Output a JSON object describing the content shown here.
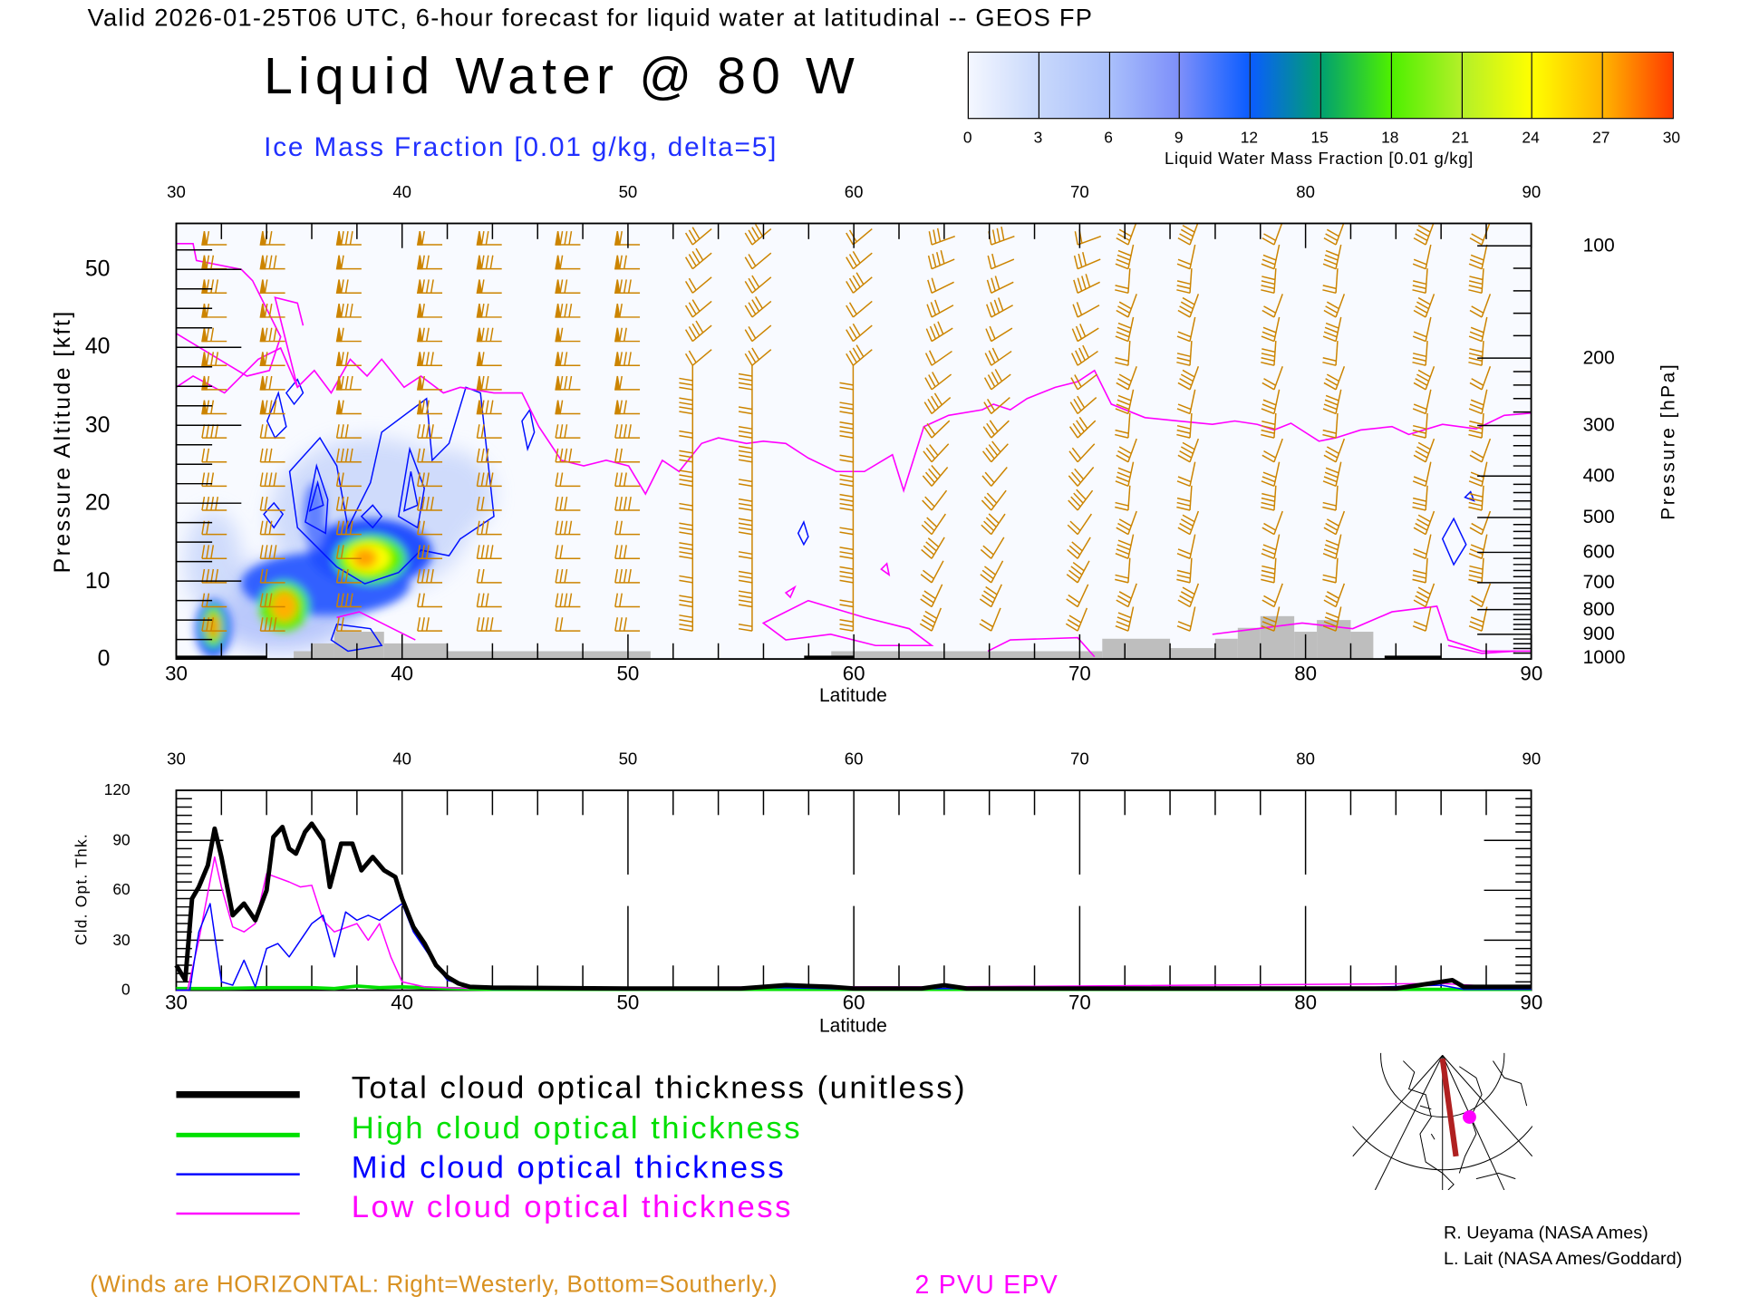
{
  "header": {
    "valid_line": "Valid 2026-01-25T06 UTC, 6-hour forecast for liquid water at latitudinal -- GEOS FP",
    "main_title": "Liquid Water @ 80 W",
    "ice_label": "Ice Mass Fraction [0.01 g/kg, delta=5]"
  },
  "colorbar": {
    "ticks": [
      "0",
      "3",
      "6",
      "9",
      "12",
      "15",
      "18",
      "21",
      "24",
      "27",
      "30"
    ],
    "label": "Liquid Water Mass Fraction [0.01 g/kg]",
    "colors": [
      "#f4f7ff",
      "#c8d8fb",
      "#a9bffb",
      "#7d8ffa",
      "#0a5cff",
      "#00a070",
      "#4ef000",
      "#b4f028",
      "#ffff00",
      "#ffb400",
      "#ff3c00"
    ]
  },
  "chart_data": [
    {
      "type": "heatmap",
      "title": "Liquid Water @ 80 W",
      "xlabel": "Latitude",
      "ylabel_left": "Pressure Altitude [kft]",
      "ylabel_right": "Pressure [hPa]",
      "xlim": [
        30,
        90
      ],
      "ylim": [
        0,
        56
      ],
      "x_ticks": [
        "30",
        "40",
        "50",
        "60",
        "70",
        "80",
        "90"
      ],
      "y_ticks": [
        "0",
        "10",
        "20",
        "30",
        "40",
        "50"
      ],
      "pressure_ticks": [
        "100",
        "200",
        "300",
        "400",
        "500",
        "600",
        "700",
        "800",
        "900",
        "1000"
      ],
      "terrain_kft": [
        [
          35.2,
          36,
          1
        ],
        [
          36,
          37,
          2
        ],
        [
          37,
          39.2,
          3.5
        ],
        [
          39.2,
          42,
          2
        ],
        [
          42,
          51,
          1
        ],
        [
          59,
          71,
          1
        ],
        [
          71,
          74,
          2.6
        ],
        [
          74,
          76,
          1.4
        ],
        [
          76,
          77,
          2.6
        ],
        [
          77,
          78,
          4
        ],
        [
          78,
          79.5,
          5.5
        ],
        [
          79.5,
          80.5,
          3.5
        ],
        [
          80.5,
          82,
          5
        ],
        [
          82,
          83,
          3.5
        ]
      ],
      "liquid_water_maxima": [
        {
          "lat": 31.8,
          "kft": 3.5,
          "value": 28
        },
        {
          "lat": 35,
          "kft": 6.5,
          "value": 27
        },
        {
          "lat": 38.3,
          "kft": 12.5,
          "value": 25
        }
      ]
    },
    {
      "type": "line",
      "xlabel": "Latitude",
      "ylabel": "Cld. Opt. Thk.",
      "xlim": [
        30,
        90
      ],
      "ylim": [
        0,
        120
      ],
      "x_ticks": [
        "30",
        "40",
        "50",
        "60",
        "70",
        "80",
        "90"
      ],
      "y_ticks": [
        "0",
        "30",
        "60",
        "90",
        "120"
      ],
      "series": [
        {
          "name": "Total cloud optical thickness (unitless)",
          "color": "#000000",
          "width": 4,
          "x": [
            30,
            30.4,
            30.7,
            31,
            31.4,
            31.7,
            32,
            32.5,
            33,
            33.5,
            34,
            34.3,
            34.7,
            35,
            35.3,
            35.7,
            36,
            36.5,
            36.8,
            37.3,
            37.8,
            38.2,
            38.7,
            39.2,
            39.7,
            40,
            40.5,
            41,
            41.5,
            42,
            42.5,
            43,
            44,
            50,
            55,
            57,
            59,
            60,
            63,
            64,
            65,
            70,
            80,
            84,
            85,
            86,
            86.5,
            87,
            88,
            90
          ],
          "y": [
            15,
            6,
            55,
            62,
            75,
            97,
            80,
            45,
            52,
            42,
            60,
            92,
            98,
            85,
            82,
            95,
            100,
            90,
            62,
            88,
            88,
            72,
            80,
            72,
            68,
            55,
            38,
            28,
            15,
            8,
            4,
            2,
            1.5,
            1,
            1,
            3,
            2,
            1,
            1,
            3,
            1,
            1,
            1,
            1,
            3,
            5,
            6,
            2,
            2,
            2
          ]
        },
        {
          "name": "High cloud optical thickness",
          "color": "#00e000",
          "width": 3,
          "x": [
            30,
            32,
            34,
            36,
            37,
            38,
            39,
            40,
            42,
            44,
            50,
            60,
            70,
            80,
            90
          ],
          "y": [
            1,
            1,
            1.5,
            1.5,
            1,
            2.5,
            1.5,
            2,
            1,
            0.5,
            0.5,
            0.5,
            0.5,
            0.5,
            0.5
          ]
        },
        {
          "name": "Mid cloud optical thickness",
          "color": "#0000ff",
          "width": 1.2,
          "x": [
            30,
            30.6,
            31,
            31.5,
            32,
            32.5,
            33,
            33.5,
            34,
            34.5,
            35,
            35.5,
            36,
            36.5,
            37,
            37.5,
            38,
            38.5,
            39,
            40,
            40.5,
            41,
            41.5,
            42,
            43,
            44,
            50,
            57,
            60,
            64,
            80,
            86,
            87,
            90
          ],
          "y": [
            0,
            0,
            35,
            52,
            5,
            3,
            18,
            2,
            25,
            28,
            20,
            30,
            40,
            45,
            20,
            47,
            42,
            45,
            42,
            52,
            35,
            25,
            15,
            6,
            2,
            0.5,
            0.5,
            1.5,
            0.5,
            1,
            0.5,
            3,
            0.5,
            0.5
          ]
        },
        {
          "name": "Low cloud optical thickness",
          "color": "#ff00ff",
          "width": 1.2,
          "x": [
            30,
            30.5,
            31,
            31.7,
            32,
            32.5,
            33,
            33.5,
            34,
            35,
            35.5,
            36,
            36.5,
            37,
            38,
            38.5,
            39,
            39.5,
            40,
            41,
            43,
            57,
            64,
            86,
            90
          ],
          "y": [
            0,
            0,
            30,
            80,
            62,
            38,
            35,
            40,
            70,
            65,
            62,
            63,
            42,
            35,
            40,
            30,
            40,
            20,
            5,
            2,
            1,
            2,
            2,
            4,
            1
          ]
        }
      ]
    }
  ],
  "legend": [
    {
      "label": "Total cloud optical thickness (unitless)",
      "color": "#000000"
    },
    {
      "label": "High cloud optical thickness",
      "color": "#00e000"
    },
    {
      "label": "Mid cloud optical thickness",
      "color": "#0000ff"
    },
    {
      "label": "Low cloud optical thickness",
      "color": "#ff00ff"
    }
  ],
  "footer": {
    "winds_note": "(Winds are HORIZONTAL: Right=Westerly, Bottom=Southerly.)",
    "epv_label": "2 PVU EPV",
    "credit1": "R. Ueyama (NASA Ames)",
    "credit2": "L. Lait (NASA Ames/Goddard)"
  }
}
